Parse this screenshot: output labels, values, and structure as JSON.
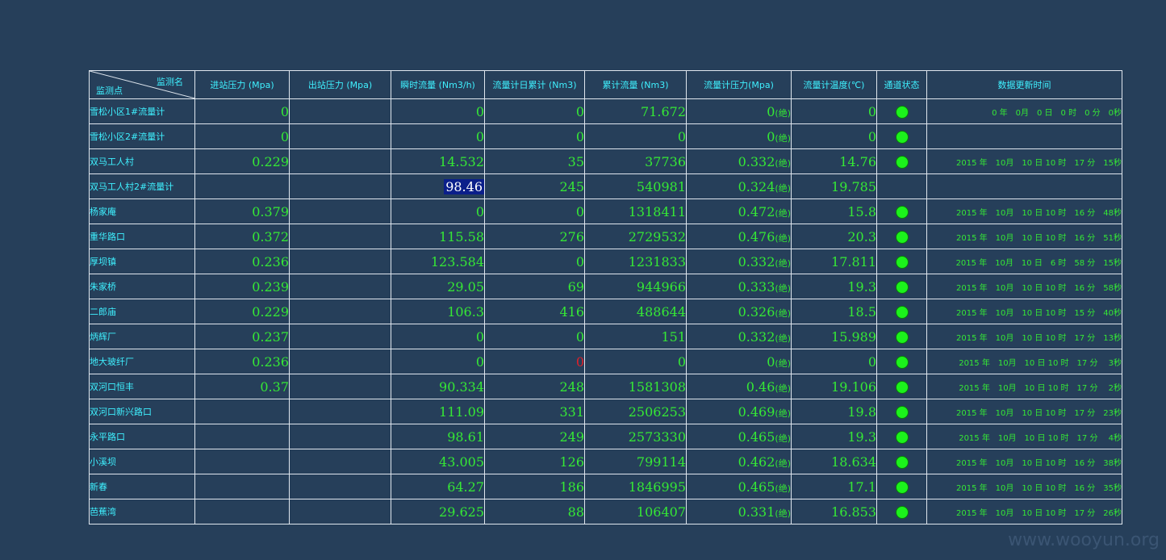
{
  "header": {
    "corner_top": "监测名",
    "corner_bottom": "监测点",
    "columns": [
      "进站压力 (Mpa)",
      "出站压力 (Mpa)",
      "瞬时流量 (Nm3/h)",
      "流量计日累计 (Nm3)",
      "累计流量 (Nm3)",
      "流量计压力(Mpa)",
      "流量计温度(℃)",
      "通道状态",
      "数据更新时间"
    ]
  },
  "unit_abs": "(绝)",
  "rows": [
    {
      "name": "雪松小区1#流量计",
      "inlet": "0",
      "outlet": "",
      "instant": "0",
      "daily": "0",
      "cumulative": "71.672",
      "pressure": "0",
      "temp": "0",
      "status": true,
      "time": "0 年　0月　0 日　0 时　0 分　0秒"
    },
    {
      "name": "雪松小区2#流量计",
      "inlet": "0",
      "outlet": "",
      "instant": "0",
      "daily": "0",
      "cumulative": "0",
      "pressure": "0",
      "temp": "0",
      "status": true,
      "time": ""
    },
    {
      "name": "双马工人村",
      "inlet": "0.229",
      "outlet": "",
      "instant": "14.532",
      "daily": "35",
      "cumulative": "37736",
      "pressure": "0.332",
      "temp": "14.76",
      "status": true,
      "time": "2015 年　10月　10 日 10 时　17 分　15秒"
    },
    {
      "name": "双马工人村2#流量计",
      "inlet": "",
      "outlet": "",
      "instant": "98.46",
      "daily": "245",
      "cumulative": "540981",
      "pressure": "0.324",
      "temp": "19.785",
      "status": false,
      "time": ""
    },
    {
      "name": "杨家庵",
      "inlet": "0.379",
      "outlet": "",
      "instant": "0",
      "daily": "0",
      "cumulative": "1318411",
      "pressure": "0.472",
      "temp": "15.8",
      "status": true,
      "time": "2015 年　10月　10 日 10 时　16 分　48秒"
    },
    {
      "name": "重华路口",
      "inlet": "0.372",
      "outlet": "",
      "instant": "115.58",
      "daily": "276",
      "cumulative": "2729532",
      "pressure": "0.476",
      "temp": "20.3",
      "status": true,
      "time": "2015 年　10月　10 日 10 时　16 分　51秒"
    },
    {
      "name": "厚坝镇",
      "inlet": "0.236",
      "outlet": "",
      "instant": "123.584",
      "daily": "0",
      "cumulative": "1231833",
      "pressure": "0.332",
      "temp": "17.811",
      "status": true,
      "time": "2015 年　10月　10 日　6 时　58 分　15秒"
    },
    {
      "name": "朱家桥",
      "inlet": "0.239",
      "outlet": "",
      "instant": "29.05",
      "daily": "69",
      "cumulative": "944966",
      "pressure": "0.333",
      "temp": "19.3",
      "status": true,
      "time": "2015 年　10月　10 日 10 时　16 分　58秒"
    },
    {
      "name": "二郎庙",
      "inlet": "0.229",
      "outlet": "",
      "instant": "106.3",
      "daily": "416",
      "cumulative": "488644",
      "pressure": "0.326",
      "temp": "18.5",
      "status": true,
      "time": "2015 年　10月　10 日 10 时　15 分　40秒"
    },
    {
      "name": "炳辉厂",
      "inlet": "0.237",
      "outlet": "",
      "instant": "0",
      "daily": "0",
      "cumulative": "151",
      "pressure": "0.332",
      "temp": "15.989",
      "status": true,
      "time": "2015 年　10月　10 日 10 时　17 分　13秒"
    },
    {
      "name": "地大玻纤厂",
      "inlet": "0.236",
      "outlet": "",
      "instant": "0",
      "daily": "0",
      "cumulative": "0",
      "pressure": "0",
      "temp": "0",
      "status": true,
      "time": "2015 年　10月　10 日 10 时　17 分　 3秒"
    },
    {
      "name": "双河口恒丰",
      "inlet": "0.37",
      "outlet": "",
      "instant": "90.334",
      "daily": "248",
      "cumulative": "1581308",
      "pressure": "0.46",
      "temp": "19.106",
      "status": true,
      "time": "2015 年　10月　10 日 10 时　17 分　 2秒"
    },
    {
      "name": "双河口新兴路口",
      "inlet": "",
      "outlet": "",
      "instant": "111.09",
      "daily": "331",
      "cumulative": "2506253",
      "pressure": "0.469",
      "temp": "19.8",
      "status": true,
      "time": "2015 年　10月　10 日 10 时　17 分　23秒"
    },
    {
      "name": "永平路口",
      "inlet": "",
      "outlet": "",
      "instant": "98.61",
      "daily": "249",
      "cumulative": "2573330",
      "pressure": "0.465",
      "temp": "19.3",
      "status": true,
      "time": "2015 年　10月　10 日 10 时　17 分　 4秒"
    },
    {
      "name": "小溪坝",
      "inlet": "",
      "outlet": "",
      "instant": "43.005",
      "daily": "126",
      "cumulative": "799114",
      "pressure": "0.462",
      "temp": "18.634",
      "status": true,
      "time": "2015 年　10月　10 日 10 时　16 分　38秒"
    },
    {
      "name": "新春",
      "inlet": "",
      "outlet": "",
      "instant": "64.27",
      "daily": "186",
      "cumulative": "1846995",
      "pressure": "0.465",
      "temp": "17.1",
      "status": true,
      "time": "2015 年　10月　10 日 10 时　16 分　35秒"
    },
    {
      "name": "芭蕉湾",
      "inlet": "",
      "outlet": "",
      "instant": "29.625",
      "daily": "88",
      "cumulative": "106407",
      "pressure": "0.331",
      "temp": "16.853",
      "status": true,
      "time": "2015 年　10月　10 日 10 时　17 分　26秒"
    }
  ],
  "watermark": "www.wooyun.org",
  "colors": {
    "background": "#263f5a",
    "label": "#3ff0ff",
    "value": "#35e835",
    "alert": "#e0202a",
    "status_on": "#1cf21c",
    "highlight": "#0b1f8a"
  }
}
